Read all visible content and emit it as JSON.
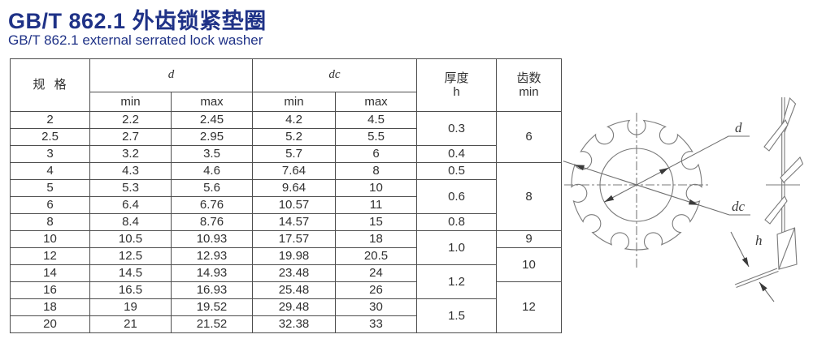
{
  "page": {
    "title": "GB/T 862.1 外齿锁紧垫圈",
    "subtitle": "GB/T 862.1 external serrated lock washer"
  },
  "colors": {
    "title_blue": "#1f3287",
    "table_border": "#4d4d4d",
    "table_text": "#303030",
    "drawing_line": "#7a7a7a"
  },
  "table": {
    "header": {
      "spec": "规  格",
      "d": "d",
      "dc": "dc",
      "min": "min",
      "max": "max",
      "thickness_line1": "厚度",
      "thickness_line2": "h",
      "teeth_line1": "齿数",
      "teeth_line2": "min"
    },
    "rows": [
      [
        "2",
        "2.2",
        "2.45",
        "4.2",
        "4.5"
      ],
      [
        "2.5",
        "2.7",
        "2.95",
        "5.2",
        "5.5"
      ],
      [
        "3",
        "3.2",
        "3.5",
        "5.7",
        "6"
      ],
      [
        "4",
        "4.3",
        "4.6",
        "7.64",
        "8"
      ],
      [
        "5",
        "5.3",
        "5.6",
        "9.64",
        "10"
      ],
      [
        "6",
        "6.4",
        "6.76",
        "10.57",
        "11"
      ],
      [
        "8",
        "8.4",
        "8.76",
        "14.57",
        "15"
      ],
      [
        "10",
        "10.5",
        "10.93",
        "17.57",
        "18"
      ],
      [
        "12",
        "12.5",
        "12.93",
        "19.98",
        "20.5"
      ],
      [
        "14",
        "14.5",
        "14.93",
        "23.48",
        "24"
      ],
      [
        "16",
        "16.5",
        "16.93",
        "25.48",
        "26"
      ],
      [
        "18",
        "19",
        "19.52",
        "29.48",
        "30"
      ],
      [
        "20",
        "21",
        "21.52",
        "32.38",
        "33"
      ]
    ],
    "thickness_groups": [
      {
        "value": "0.3",
        "span": 2
      },
      {
        "value": "0.4",
        "span": 1
      },
      {
        "value": "0.5",
        "span": 1
      },
      {
        "value": "0.6",
        "span": 2
      },
      {
        "value": "0.8",
        "span": 1
      },
      {
        "value": "1.0",
        "span": 2
      },
      {
        "value": "1.2",
        "span": 2
      },
      {
        "value": "1.5",
        "span": 2
      }
    ],
    "teeth_groups": [
      {
        "value": "6",
        "span": 3
      },
      {
        "value": "8",
        "span": 4
      },
      {
        "value": "9",
        "span": 1
      },
      {
        "value": "10",
        "span": 2
      },
      {
        "value": "12",
        "span": 3
      }
    ]
  },
  "drawing": {
    "label_d": "d",
    "label_dc": "dc",
    "label_h": "h"
  }
}
